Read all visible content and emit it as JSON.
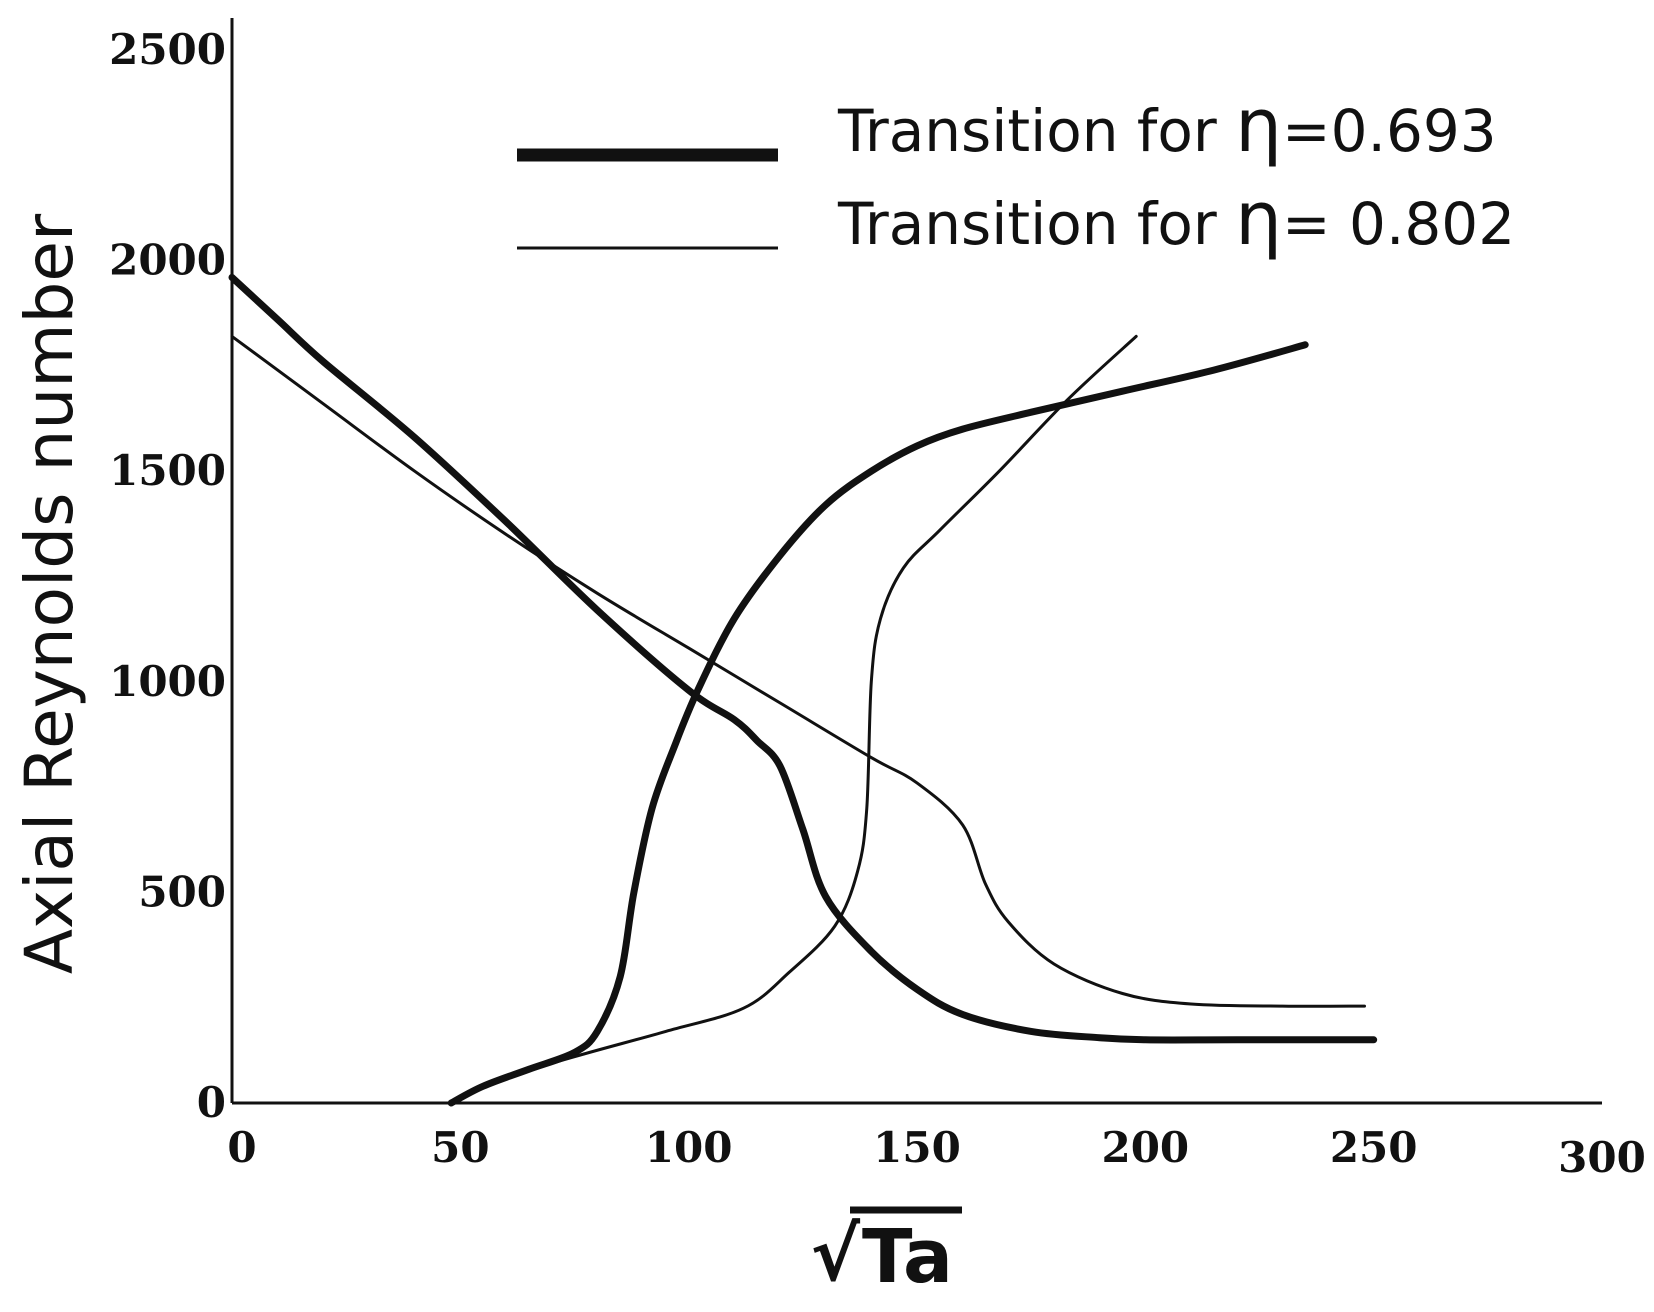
{
  "chart_data": {
    "type": "line",
    "title": "",
    "xlabel": "Ta",
    "xlabel_radical": "√",
    "ylabel": "Axial Reynolds number",
    "xlim": [
      0,
      300
    ],
    "ylim": [
      0,
      2500
    ],
    "x_ticks": [
      "0",
      "50",
      "100",
      "150",
      "200",
      "250",
      "300"
    ],
    "y_ticks": [
      "0",
      "500",
      "1000",
      "1500",
      "2000",
      "2500"
    ],
    "grid": false,
    "legend_position": "top-right",
    "legend": [
      {
        "prefix": "Transition for ",
        "symbol": "η",
        "suffix": "=0.693"
      },
      {
        "prefix": "Transition for ",
        "symbol": "η",
        "suffix": "= 0.802"
      }
    ],
    "series": [
      {
        "legend_index": 0,
        "stroke_width": 7,
        "x": [
          0,
          10,
          20,
          40,
          60,
          80,
          100,
          110,
          115,
          120,
          125,
          130,
          140,
          150,
          160,
          175,
          190,
          200,
          220,
          250
        ],
        "y": [
          1960,
          1860,
          1760,
          1580,
          1380,
          1170,
          980,
          910,
          860,
          800,
          650,
          490,
          360,
          270,
          210,
          170,
          155,
          150,
          150,
          150
        ]
      },
      {
        "legend_index": 1,
        "stroke_width": 3,
        "x": [
          0,
          20,
          40,
          60,
          80,
          100,
          120,
          140,
          150,
          160,
          165,
          170,
          180,
          195,
          210,
          230,
          248
        ],
        "y": [
          1820,
          1660,
          1500,
          1350,
          1210,
          1080,
          950,
          820,
          760,
          660,
          520,
          430,
          330,
          260,
          235,
          230,
          230
        ]
      },
      {
        "legend_index": 0,
        "stroke_width": 7,
        "x": [
          48,
          55,
          65,
          75,
          80,
          85,
          88,
          92,
          97,
          102,
          110,
          120,
          130,
          140,
          150,
          160,
          175,
          195,
          215,
          235
        ],
        "y": [
          0,
          40,
          80,
          120,
          170,
          300,
          500,
          700,
          850,
          980,
          1150,
          1300,
          1420,
          1500,
          1560,
          1600,
          1640,
          1690,
          1740,
          1800
        ]
      },
      {
        "legend_index": 1,
        "stroke_width": 3,
        "x": [
          48,
          60,
          75,
          95,
          112,
          122,
          132,
          137,
          139,
          140,
          142,
          147,
          155,
          168,
          183,
          198
        ],
        "y": [
          0,
          60,
          110,
          170,
          225,
          310,
          420,
          550,
          700,
          1000,
          1150,
          1270,
          1360,
          1500,
          1670,
          1820
        ]
      }
    ]
  }
}
